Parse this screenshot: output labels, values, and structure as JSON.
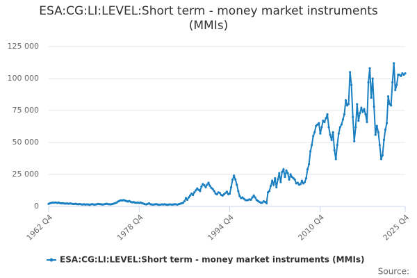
{
  "chart_data": {
    "type": "line",
    "title": "ESA:CG:LI:LEVEL:Short term - money market instruments (MMIs)",
    "source": "Source:",
    "categories": [
      "1962 Q4",
      null,
      null,
      null,
      null,
      null,
      null,
      null,
      null,
      null,
      null,
      null,
      null,
      null,
      null,
      null,
      null,
      null,
      null,
      null,
      null,
      null,
      null,
      null,
      null,
      null,
      null,
      null,
      null,
      null,
      null,
      null,
      null,
      null,
      null,
      null,
      null,
      null,
      null,
      null,
      null,
      null,
      null,
      null,
      null,
      null,
      null,
      null,
      null,
      null,
      null,
      null,
      null,
      null,
      null,
      null,
      null,
      null,
      null,
      null,
      null,
      null,
      null,
      null,
      "1978 Q4",
      null,
      null,
      null,
      null,
      null,
      null,
      null,
      null,
      null,
      null,
      null,
      null,
      null,
      null,
      null,
      null,
      null,
      null,
      null,
      null,
      null,
      null,
      null,
      null,
      null,
      null,
      null,
      null,
      null,
      null,
      null,
      null,
      null,
      null,
      null,
      null,
      null,
      null,
      null,
      null,
      null,
      null,
      null,
      null,
      null,
      null,
      null,
      null,
      null,
      null,
      null,
      null,
      null,
      null,
      null,
      null,
      null,
      null,
      null,
      null,
      null,
      null,
      null,
      "1994 Q4",
      null,
      null,
      null,
      null,
      null,
      null,
      null,
      null,
      null,
      null,
      null,
      null,
      null,
      null,
      null,
      null,
      null,
      null,
      null,
      null,
      null,
      null,
      null,
      null,
      null,
      null,
      null,
      null,
      null,
      null,
      null,
      null,
      null,
      null,
      null,
      null,
      null,
      null,
      null,
      null,
      null,
      null,
      null,
      null,
      null,
      null,
      null,
      null,
      null,
      null,
      null,
      null,
      null,
      null,
      null,
      null,
      null,
      null,
      null,
      null,
      null,
      null,
      null,
      "2010 Q4",
      null,
      null,
      null,
      null,
      null,
      null,
      null,
      null,
      null,
      null,
      null,
      null,
      null,
      null,
      null,
      null,
      null,
      null,
      null,
      null,
      null,
      null,
      null,
      null,
      null,
      null,
      null,
      null,
      null,
      null,
      null,
      null,
      null,
      null,
      null,
      null,
      null,
      null,
      null,
      null,
      null,
      null,
      null,
      null,
      null,
      null,
      null,
      null,
      null,
      null,
      null,
      null,
      null,
      null,
      null,
      null,
      null,
      null,
      null,
      "2025 Q4"
    ],
    "series": [
      {
        "name": "ESA:CG:LI:LEVEL:Short term - money market instruments (MMIs)",
        "color": "#1a7fc1",
        "values": [
          2000,
          2500,
          2800,
          3000,
          2900,
          3100,
          2700,
          3000,
          2600,
          2400,
          2500,
          2300,
          2200,
          2400,
          2100,
          2300,
          2200,
          2000,
          1900,
          2100,
          1800,
          1700,
          1900,
          1600,
          1500,
          1700,
          1400,
          1600,
          1500,
          1300,
          1600,
          1800,
          1400,
          1500,
          1700,
          2000,
          1800,
          1700,
          1500,
          1600,
          1900,
          2100,
          1800,
          1700,
          1600,
          1900,
          2200,
          2600,
          3000,
          3800,
          4300,
          4800,
          4600,
          5000,
          4500,
          4200,
          3800,
          4200,
          3600,
          3200,
          3400,
          3000,
          2800,
          3000,
          2700,
          3000,
          2500,
          2200,
          1800,
          1600,
          2000,
          2400,
          1700,
          1500,
          1400,
          1600,
          1800,
          1500,
          1300,
          1400,
          1600,
          1500,
          1700,
          1400,
          1300,
          1500,
          1600,
          1400,
          1500,
          1700,
          1600,
          1400,
          1800,
          2100,
          2400,
          2800,
          4000,
          6500,
          5200,
          7000,
          8500,
          10000,
          9000,
          11000,
          12500,
          14000,
          13000,
          12000,
          15500,
          17500,
          16500,
          15000,
          17000,
          18500,
          16000,
          14500,
          13500,
          12000,
          10000,
          9500,
          11000,
          10500,
          9000,
          8500,
          9500,
          10500,
          11500,
          9500,
          10000,
          15000,
          21000,
          24000,
          21000,
          17000,
          12000,
          8000,
          6500,
          7000,
          6000,
          5000,
          4800,
          5000,
          5500,
          5200,
          7000,
          8500,
          7000,
          5000,
          4200,
          3500,
          2800,
          3000,
          4000,
          3500,
          2500,
          11000,
          12000,
          16000,
          20000,
          17000,
          22000,
          15000,
          21000,
          26000,
          19000,
          27000,
          29000,
          23000,
          28000,
          26000,
          21000,
          25000,
          23000,
          22000,
          21000,
          18000,
          18500,
          17000,
          17500,
          20000,
          18000,
          19000,
          22000,
          29000,
          33000,
          43000,
          48000,
          55000,
          58000,
          63000,
          64000,
          65000,
          57000,
          62000,
          67000,
          66000,
          69000,
          72000,
          62000,
          56000,
          52000,
          58000,
          44000,
          37000,
          48000,
          57000,
          62000,
          64000,
          68000,
          72000,
          83000,
          79000,
          80000,
          105000,
          95000,
          70000,
          51000,
          62000,
          80000,
          67000,
          73000,
          77000,
          74000,
          76000,
          72000,
          66000,
          97000,
          108000,
          85000,
          100000,
          78000,
          56000,
          63000,
          58000,
          48000,
          37000,
          40000,
          52000,
          60000,
          65000,
          86000,
          80000,
          79000,
          97000,
          112000,
          91000,
          95000,
          103000,
          103000,
          102000,
          104000,
          103000,
          104000
        ]
      }
    ],
    "ylim": [
      0,
      125000
    ],
    "yticks": [
      0,
      {
        "value": 25000,
        "label": "25 000"
      },
      {
        "value": 50000,
        "label": "50 000"
      },
      {
        "value": 75000,
        "label": "75 000"
      },
      {
        "value": 100000,
        "label": "100 000"
      },
      {
        "value": 125000,
        "label": "125 000"
      }
    ],
    "grid": true,
    "legend": "bottom"
  }
}
